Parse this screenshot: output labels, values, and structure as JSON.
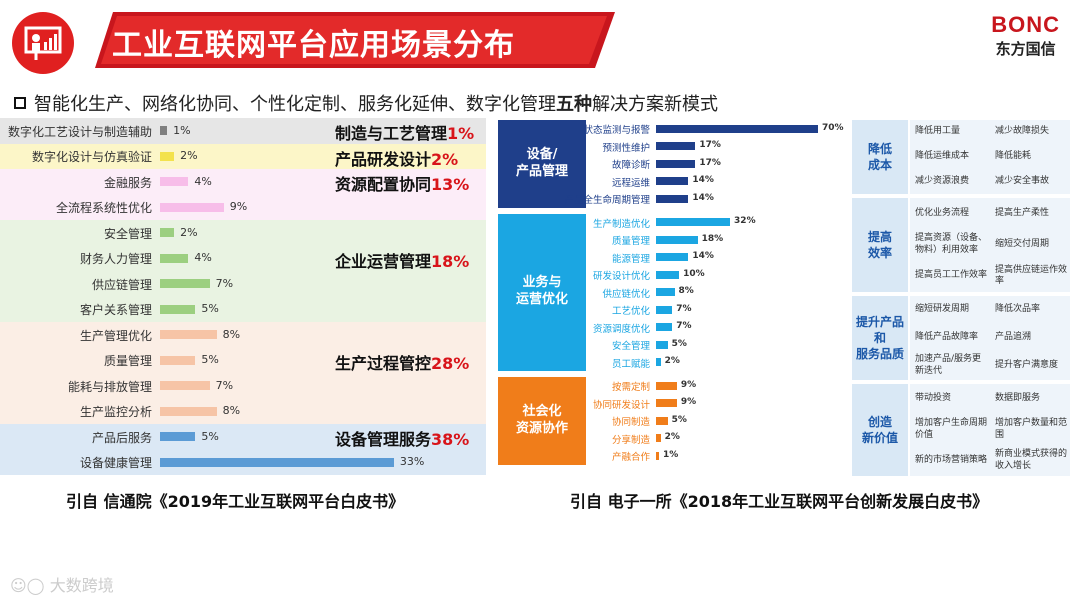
{
  "header": {
    "title": "工业互联网平台应用场景分布",
    "brand_en": "BONC",
    "brand_cn": "东方国信"
  },
  "subtitle": {
    "before": "智能化生产、网络化协同、个性化定制、服务化延伸、数字化管理",
    "bold": "五种",
    "after": "解决方案新模式"
  },
  "colors": {
    "accent_red": "#d8141a",
    "navy": "#1f3f8a",
    "cyan": "#1ba6e2",
    "orange": "#f07d1a"
  },
  "chart_data": [
    {
      "type": "bar",
      "orientation": "horizontal",
      "xlim": [
        0,
        35
      ],
      "groups": [
        {
          "name": "制造与工艺管理",
          "pct": "1%",
          "band_color": "#e6e6e6",
          "bar_color": "#7f7f7f",
          "items": [
            {
              "label": "数字化工艺设计与制造辅助",
              "value": 1,
              "text": "1%"
            }
          ]
        },
        {
          "name": "产品研发设计",
          "pct": "2%",
          "band_color": "#fcf6c8",
          "bar_color": "#f3e24c",
          "items": [
            {
              "label": "数字化设计与仿真验证",
              "value": 2,
              "text": "2%"
            }
          ]
        },
        {
          "name": "资源配置协同",
          "pct": "13%",
          "band_color": "#fcedf8",
          "bar_color": "#f7bde9",
          "items": [
            {
              "label": "金融服务",
              "value": 4,
              "text": "4%"
            },
            {
              "label": "全流程系统性优化",
              "value": 9,
              "text": "9%"
            }
          ]
        },
        {
          "name": "企业运营管理",
          "pct": "18%",
          "band_color": "#e9f3e2",
          "bar_color": "#9ccf80",
          "items": [
            {
              "label": "安全管理",
              "value": 2,
              "text": "2%"
            },
            {
              "label": "财务人力管理",
              "value": 4,
              "text": "4%"
            },
            {
              "label": "供应链管理",
              "value": 7,
              "text": "7%"
            },
            {
              "label": "客户关系管理",
              "value": 5,
              "text": "5%"
            }
          ]
        },
        {
          "name": "生产过程管控",
          "pct": "28%",
          "band_color": "#fbeee5",
          "bar_color": "#f6c4a6",
          "items": [
            {
              "label": "生产管理优化",
              "value": 8,
              "text": "8%"
            },
            {
              "label": "质量管理",
              "value": 5,
              "text": "5%"
            },
            {
              "label": "能耗与排放管理",
              "value": 7,
              "text": "7%"
            },
            {
              "label": "生产监控分析",
              "value": 8,
              "text": "8%"
            }
          ]
        },
        {
          "name": "设备管理服务",
          "pct": "38%",
          "band_color": "#dbe8f5",
          "bar_color": "#5b9bd5",
          "items": [
            {
              "label": "产品后服务",
              "value": 5,
              "text": "5%"
            },
            {
              "label": "设备健康管理",
              "value": 33,
              "text": "33%"
            }
          ]
        }
      ]
    },
    {
      "type": "bar",
      "orientation": "horizontal",
      "xlim": [
        0,
        70
      ],
      "categories": [
        {
          "name_lines": [
            "设备/",
            "产品管理"
          ],
          "color": "#1f3f8a",
          "items": [
            {
              "label": "状态监测与报警",
              "value": 70,
              "text": "70%"
            },
            {
              "label": "预测性维护",
              "value": 17,
              "text": "17%"
            },
            {
              "label": "故障诊断",
              "value": 17,
              "text": "17%"
            },
            {
              "label": "远程运维",
              "value": 14,
              "text": "14%"
            },
            {
              "label": "产品全生命周期管理",
              "value": 14,
              "text": "14%"
            }
          ]
        },
        {
          "name_lines": [
            "业务与",
            "运营优化"
          ],
          "color": "#1ba6e2",
          "items": [
            {
              "label": "生产制造优化",
              "value": 32,
              "text": "32%"
            },
            {
              "label": "质量管理",
              "value": 18,
              "text": "18%"
            },
            {
              "label": "能源管理",
              "value": 14,
              "text": "14%"
            },
            {
              "label": "研发设计优化",
              "value": 10,
              "text": "10%"
            },
            {
              "label": "供应链优化",
              "value": 8,
              "text": "8%"
            },
            {
              "label": "工艺优化",
              "value": 7,
              "text": "7%"
            },
            {
              "label": "资源调度优化",
              "value": 7,
              "text": "7%"
            },
            {
              "label": "安全管理",
              "value": 5,
              "text": "5%"
            },
            {
              "label": "员工赋能",
              "value": 2,
              "text": "2%"
            }
          ]
        },
        {
          "name_lines": [
            "社会化",
            "资源协作"
          ],
          "color": "#f07d1a",
          "items": [
            {
              "label": "按需定制",
              "value": 9,
              "text": "9%"
            },
            {
              "label": "协同研发设计",
              "value": 9,
              "text": "9%"
            },
            {
              "label": "协同制造",
              "value": 5,
              "text": "5%"
            },
            {
              "label": "分享制造",
              "value": 2,
              "text": "2%"
            },
            {
              "label": "产融合作",
              "value": 1,
              "text": "1%"
            }
          ]
        }
      ]
    }
  ],
  "benefits": [
    {
      "name_lines": [
        "降低",
        "成本"
      ],
      "rows": [
        [
          "降低用工量",
          "减少故障损失"
        ],
        [
          "降低运维成本",
          "降低能耗"
        ],
        [
          "减少资源浪费",
          "减少安全事故"
        ]
      ]
    },
    {
      "name_lines": [
        "提高",
        "效率"
      ],
      "rows": [
        [
          "优化业务流程",
          "提高生产柔性"
        ],
        [
          "提高资源（设备、物料）利用效率",
          "缩短交付周期"
        ],
        [
          "提高员工工作效率",
          "提高供应链运作效率"
        ]
      ]
    },
    {
      "name_lines": [
        "提升产品",
        "和",
        "服务品质"
      ],
      "rows": [
        [
          "缩短研发周期",
          "降低次品率"
        ],
        [
          "降低产品故障率",
          "产品追溯"
        ],
        [
          "加速产品/服务更新迭代",
          "提升客户满意度"
        ]
      ]
    },
    {
      "name_lines": [
        "创造",
        "新价值"
      ],
      "rows": [
        [
          "带动投资",
          "数据即服务"
        ],
        [
          "增加客户生命周期价值",
          "增加客户数量和范围"
        ],
        [
          "新的市场营销策略",
          "新商业模式获得的收入增长"
        ]
      ]
    }
  ],
  "citations": {
    "left": "引自 信通院《2019年工业互联网平台白皮书》",
    "right": "引自 电子一所《2018年工业互联网平台创新发展白皮书》"
  },
  "watermark": "大数跨境"
}
